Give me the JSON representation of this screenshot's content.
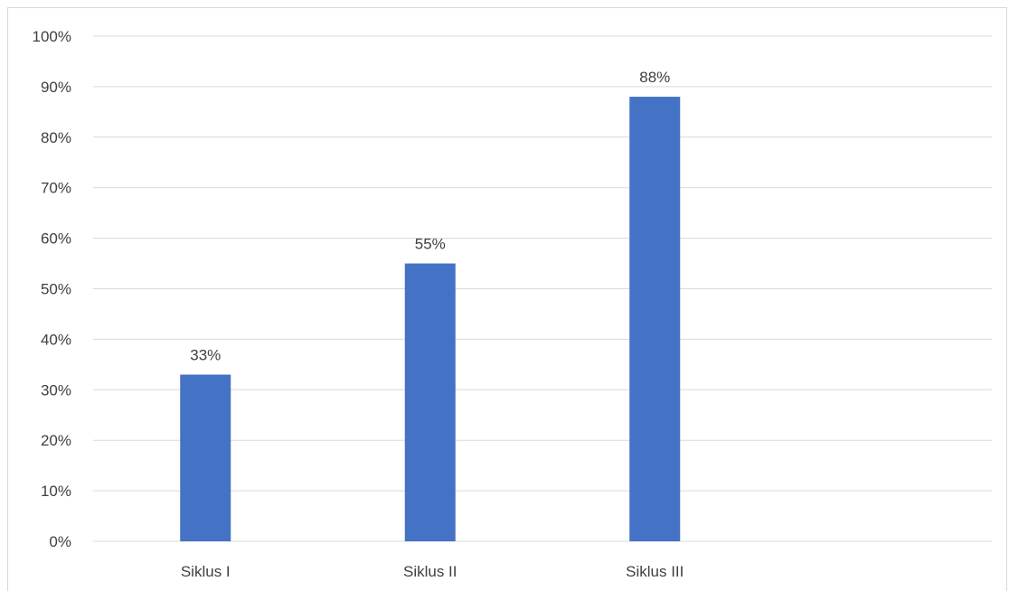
{
  "chart_data": {
    "type": "bar",
    "categories": [
      "Siklus I",
      "Siklus II",
      "Siklus III"
    ],
    "values": [
      33,
      55,
      88
    ],
    "data_labels": [
      "33%",
      "55%",
      "88%"
    ],
    "y_ticks": [
      "0%",
      "10%",
      "20%",
      "30%",
      "40%",
      "50%",
      "60%",
      "70%",
      "80%",
      "90%",
      "100%"
    ],
    "ylim": [
      0,
      100
    ],
    "grid": true,
    "legend": "none",
    "bar_color": "#4472c4",
    "grid_color": "#d9d9d9"
  }
}
